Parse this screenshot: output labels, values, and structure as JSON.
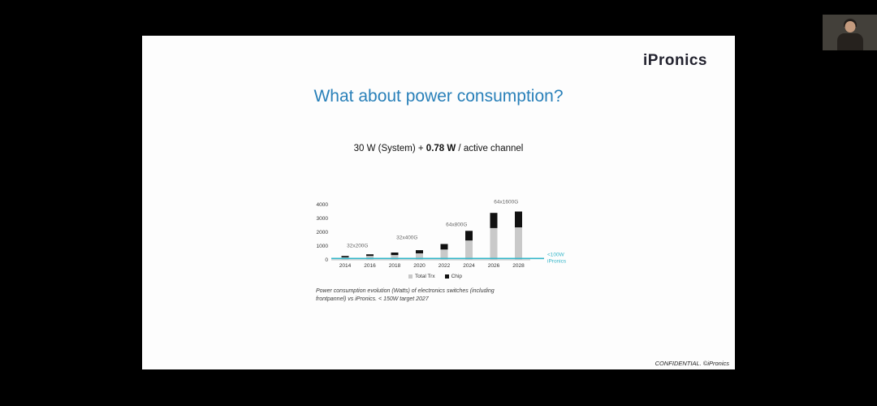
{
  "slide": {
    "logo_text": "iPronics",
    "title": "What about power consumption?",
    "subtitle": {
      "prefix": "30 W (System) + ",
      "bold": "0.78 W",
      "suffix": " / active channel"
    },
    "caption_line1": "Power consumption evolution (Watts) of electronics switches (including",
    "caption_line2": "frontpannel) vs iPronics. < 150W target 2027",
    "footer": "CONFIDENTIAL. ©iPronics"
  },
  "chart_data": {
    "type": "bar",
    "stacked": true,
    "title": "",
    "xlabel": "",
    "ylabel": "",
    "grid": false,
    "legend_position": "bottom",
    "categories": [
      "2014",
      "2016",
      "2018",
      "2020",
      "2022",
      "2024",
      "2026",
      "2028"
    ],
    "series": [
      {
        "name": "Total Trx",
        "color": "#c9c9c9",
        "values": [
          180,
          280,
          350,
          470,
          750,
          1400,
          2300,
          2350
        ]
      },
      {
        "name": "Chip",
        "color": "#111111",
        "values": [
          100,
          120,
          180,
          230,
          400,
          700,
          1100,
          1150
        ]
      }
    ],
    "ylim": [
      0,
      4000
    ],
    "yticks": [
      0,
      1000,
      2000,
      3000,
      4000
    ],
    "annotations": [
      {
        "label": "32x200G",
        "xi": 0.5,
        "y": 900
      },
      {
        "label": "32x400G",
        "xi": 2.5,
        "y": 1500
      },
      {
        "label": "64x800G",
        "xi": 4.5,
        "y": 2450
      },
      {
        "label": "64x1600G",
        "xi": 6.5,
        "y": 4100
      }
    ],
    "threshold": {
      "value": 100,
      "color": "#35b6c9",
      "label_lines": [
        "<100W",
        "iPronics"
      ]
    }
  },
  "colors": {
    "title_blue": "#2980b9",
    "accent_teal": "#35b6c9",
    "slide_bg": "#fdfdfd",
    "window_bg": "#000000"
  }
}
